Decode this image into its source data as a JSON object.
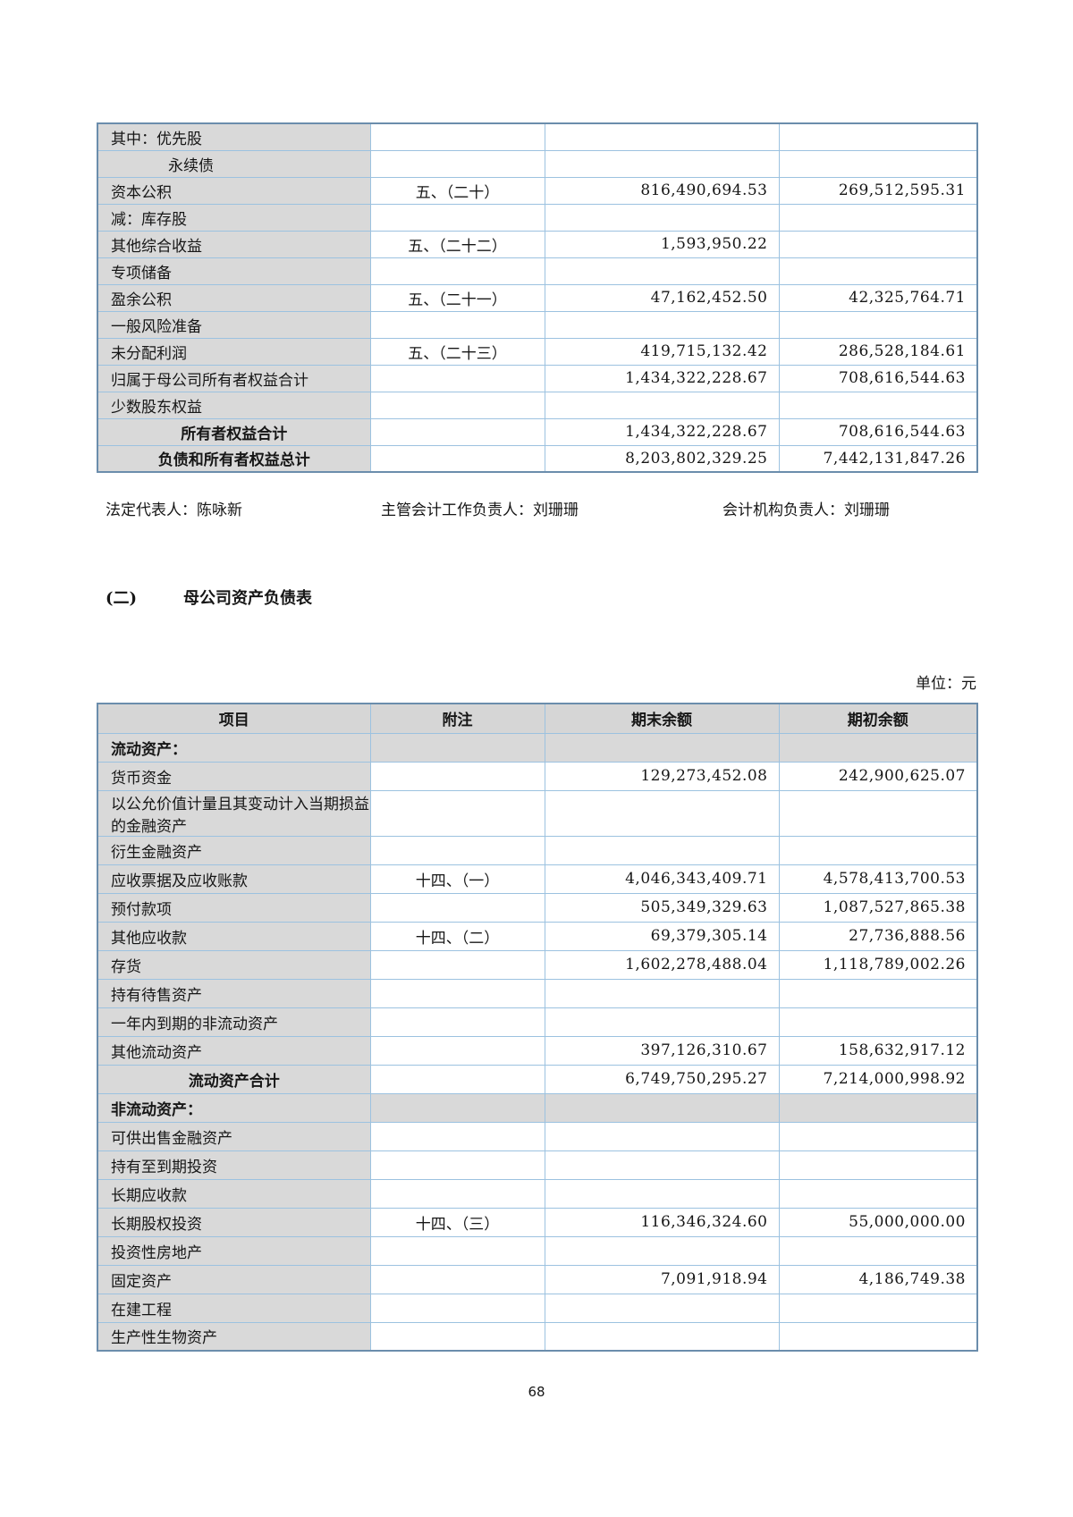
{
  "signatures": {
    "legal_rep": "法定代表人：陈咏新",
    "chief_accounting_officer": "主管会计工作负责人：刘珊珊",
    "accounting_dept_head": "会计机构负责人：刘珊珊"
  },
  "section": {
    "index": "(二)",
    "title": "母公司资产负债表"
  },
  "unit_label": "单位：元",
  "page_number": "68",
  "table1": {
    "rows": [
      {
        "item": "其中：优先股",
        "note": "",
        "end": "",
        "begin": "",
        "style": "normal"
      },
      {
        "item": "永续债",
        "note": "",
        "end": "",
        "begin": "",
        "style": "indent"
      },
      {
        "item": "资本公积",
        "note": "五、（二十）",
        "end": "816,490,694.53",
        "begin": "269,512,595.31",
        "style": "normal"
      },
      {
        "item": "减：库存股",
        "note": "",
        "end": "",
        "begin": "",
        "style": "normal"
      },
      {
        "item": "其他综合收益",
        "note": "五、（二十二）",
        "end": "1,593,950.22",
        "begin": "",
        "style": "normal"
      },
      {
        "item": "专项储备",
        "note": "",
        "end": "",
        "begin": "",
        "style": "normal"
      },
      {
        "item": "盈余公积",
        "note": "五、（二十一）",
        "end": "47,162,452.50",
        "begin": "42,325,764.71",
        "style": "normal"
      },
      {
        "item": "一般风险准备",
        "note": "",
        "end": "",
        "begin": "",
        "style": "normal"
      },
      {
        "item": "未分配利润",
        "note": "五、（二十三）",
        "end": "419,715,132.42",
        "begin": "286,528,184.61",
        "style": "normal"
      },
      {
        "item": "归属于母公司所有者权益合计",
        "note": "",
        "end": "1,434,322,228.67",
        "begin": "708,616,544.63",
        "style": "normal"
      },
      {
        "item": "少数股东权益",
        "note": "",
        "end": "",
        "begin": "",
        "style": "normal"
      },
      {
        "item": "所有者权益合计",
        "note": "",
        "end": "1,434,322,228.67",
        "begin": "708,616,544.63",
        "style": "total"
      },
      {
        "item": "负债和所有者权益总计",
        "note": "",
        "end": "8,203,802,329.25",
        "begin": "7,442,131,847.26",
        "style": "total"
      }
    ]
  },
  "table2": {
    "headers": [
      "项目",
      "附注",
      "期末余额",
      "期初余额"
    ],
    "rows": [
      {
        "item": "流动资产：",
        "note": "",
        "end": "",
        "begin": "",
        "style": "section"
      },
      {
        "item": "货币资金",
        "note": "",
        "end": "129,273,452.08",
        "begin": "242,900,625.07",
        "style": "normal"
      },
      {
        "item": "以公允价值计量且其变动计入当期损益的金融资产",
        "note": "",
        "end": "",
        "begin": "",
        "style": "normal"
      },
      {
        "item": "衍生金融资产",
        "note": "",
        "end": "",
        "begin": "",
        "style": "normal"
      },
      {
        "item": "应收票据及应收账款",
        "note": "十四、（一）",
        "end": "4,046,343,409.71",
        "begin": "4,578,413,700.53",
        "style": "normal"
      },
      {
        "item": "预付款项",
        "note": "",
        "end": "505,349,329.63",
        "begin": "1,087,527,865.38",
        "style": "normal"
      },
      {
        "item": "其他应收款",
        "note": "十四、（二）",
        "end": "69,379,305.14",
        "begin": "27,736,888.56",
        "style": "normal"
      },
      {
        "item": "存货",
        "note": "",
        "end": "1,602,278,488.04",
        "begin": "1,118,789,002.26",
        "style": "normal"
      },
      {
        "item": "持有待售资产",
        "note": "",
        "end": "",
        "begin": "",
        "style": "normal"
      },
      {
        "item": "一年内到期的非流动资产",
        "note": "",
        "end": "",
        "begin": "",
        "style": "normal"
      },
      {
        "item": "其他流动资产",
        "note": "",
        "end": "397,126,310.67",
        "begin": "158,632,917.12",
        "style": "normal"
      },
      {
        "item": "流动资产合计",
        "note": "",
        "end": "6,749,750,295.27",
        "begin": "7,214,000,998.92",
        "style": "total"
      },
      {
        "item": "非流动资产：",
        "note": "",
        "end": "",
        "begin": "",
        "style": "section"
      },
      {
        "item": "可供出售金融资产",
        "note": "",
        "end": "",
        "begin": "",
        "style": "normal"
      },
      {
        "item": "持有至到期投资",
        "note": "",
        "end": "",
        "begin": "",
        "style": "normal"
      },
      {
        "item": "长期应收款",
        "note": "",
        "end": "",
        "begin": "",
        "style": "normal"
      },
      {
        "item": "长期股权投资",
        "note": "十四、（三）",
        "end": "116,346,324.60",
        "begin": "55,000,000.00",
        "style": "normal"
      },
      {
        "item": "投资性房地产",
        "note": "",
        "end": "",
        "begin": "",
        "style": "normal"
      },
      {
        "item": "固定资产",
        "note": "",
        "end": "7,091,918.94",
        "begin": "4,186,749.38",
        "style": "normal"
      },
      {
        "item": "在建工程",
        "note": "",
        "end": "",
        "begin": "",
        "style": "normal"
      },
      {
        "item": "生产性生物资产",
        "note": "",
        "end": "",
        "begin": "",
        "style": "normal"
      }
    ]
  }
}
